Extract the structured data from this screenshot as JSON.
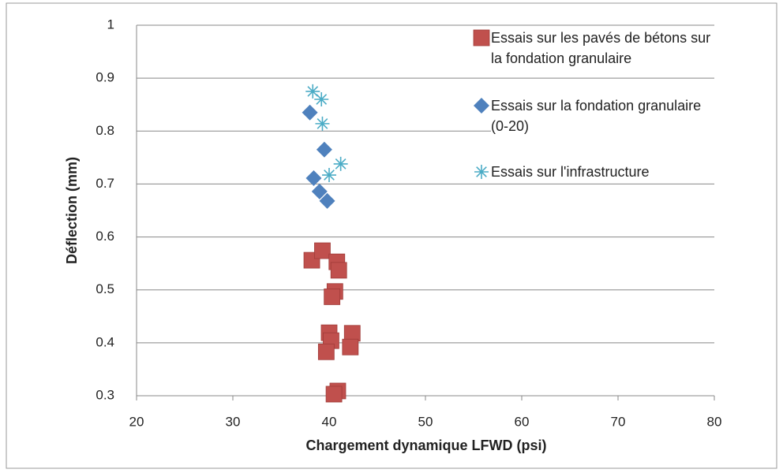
{
  "chart_data": {
    "type": "scatter",
    "xlabel": "Chargement dynamique LFWD (psi)",
    "ylabel": "Déflection (mm)",
    "xlim": [
      20,
      80
    ],
    "xticks": [
      20,
      30,
      40,
      50,
      60,
      70,
      80
    ],
    "ylim": [
      0.3,
      1
    ],
    "yticks": [
      0.3,
      0.4,
      0.5,
      0.6,
      0.7,
      0.8,
      0.9,
      1
    ],
    "grid": true,
    "legend": "upper right",
    "series": [
      {
        "name": "Essais sur les pavés de bétons sur la fondation granulaire",
        "color": "#c0504d",
        "marker": "square",
        "x": [
          38.2,
          39.3,
          40.8,
          41.0,
          40.6,
          40.3,
          40.0,
          42.4,
          40.2,
          42.2,
          39.7,
          40.9,
          40.5
        ],
        "values": [
          0.556,
          0.574,
          0.553,
          0.537,
          0.497,
          0.487,
          0.419,
          0.418,
          0.404,
          0.392,
          0.383,
          0.309,
          0.303
        ]
      },
      {
        "name": "Essais sur la fondation granulaire (0-20)",
        "color": "#4f81bd",
        "marker": "diamond",
        "x": [
          38.0,
          39.5,
          38.4,
          39.0,
          39.8
        ],
        "values": [
          0.835,
          0.765,
          0.711,
          0.686,
          0.668
        ]
      },
      {
        "name": "Essais sur l'infrastructure",
        "color": "#4bacc6",
        "marker": "star",
        "x": [
          38.3,
          39.2,
          39.3,
          41.2,
          40.0
        ],
        "values": [
          0.875,
          0.86,
          0.814,
          0.738,
          0.717
        ]
      }
    ]
  }
}
